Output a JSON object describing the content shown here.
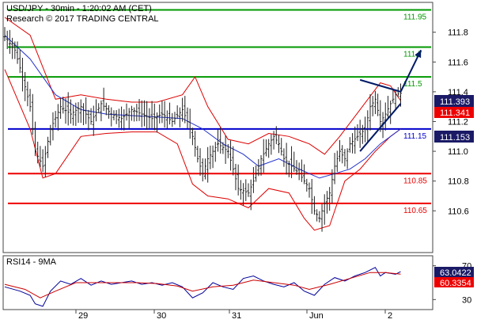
{
  "header": {
    "title": "USD/JPY - 30min - 1:20:02 AM (CET)",
    "credit": "Research © 2017 TRADING CENTRAL"
  },
  "colors": {
    "price_bars": "#222222",
    "bollinger": "#dd0000",
    "moving_average": "#2233cc",
    "support": "#ee0000",
    "pivot": "#0000cc",
    "resistance": "#009900",
    "target_arrow": "#001a66",
    "rsi": "#000099",
    "rsi_ma": "#cc0000"
  },
  "chart_data": [
    {
      "type": "candlestick",
      "title": "USD/JPY - 30min - 1:20:02 AM (CET)",
      "y_range": [
        110.33,
        111.99
      ],
      "y_ticks": [
        "111.8",
        "111.6",
        "111.4",
        "111.2",
        "111.0",
        "110.8",
        "110.6"
      ],
      "y_tick_values": [
        111.8,
        111.6,
        111.4,
        111.2,
        111.0,
        110.8,
        110.6
      ],
      "x_labels": [
        "29",
        "30",
        "31",
        "Jun",
        "2"
      ],
      "current_price": "111.393",
      "current_price_value": 111.393,
      "upper_band_value": "111.341",
      "upper_band": 111.341,
      "lower_value": "111.153",
      "lower_level": 111.153,
      "levels": [
        {
          "value": 111.95,
          "label": "111.95",
          "kind": "resistance"
        },
        {
          "value": 111.7,
          "label": "111.7",
          "kind": "resistance"
        },
        {
          "value": 111.5,
          "label": "111.5",
          "kind": "resistance"
        },
        {
          "value": 111.15,
          "label": "111.15",
          "kind": "pivot"
        },
        {
          "value": 110.85,
          "label": "110.85",
          "kind": "support"
        },
        {
          "value": 110.65,
          "label": "110.65",
          "kind": "support"
        }
      ],
      "close_path": [
        [
          0,
          111.77
        ],
        [
          4,
          111.68
        ],
        [
          7,
          111.5
        ],
        [
          10,
          111.3
        ],
        [
          12,
          111.0
        ],
        [
          15,
          110.9
        ],
        [
          18,
          111.15
        ],
        [
          22,
          111.3
        ],
        [
          26,
          111.25
        ],
        [
          30,
          111.3
        ],
        [
          34,
          111.2
        ],
        [
          38,
          111.32
        ],
        [
          42,
          111.25
        ],
        [
          46,
          111.22
        ],
        [
          50,
          111.28
        ],
        [
          54,
          111.25
        ],
        [
          58,
          111.22
        ],
        [
          62,
          111.25
        ],
        [
          66,
          111.2
        ],
        [
          70,
          111.28
        ],
        [
          72,
          111.2
        ],
        [
          74,
          111.1
        ],
        [
          76,
          110.95
        ],
        [
          78,
          110.85
        ],
        [
          80,
          110.95
        ],
        [
          84,
          111.05
        ],
        [
          88,
          111.0
        ],
        [
          90,
          110.88
        ],
        [
          92,
          110.75
        ],
        [
          96,
          110.72
        ],
        [
          98,
          110.8
        ],
        [
          101,
          110.95
        ],
        [
          104,
          111.05
        ],
        [
          106,
          111.1
        ],
        [
          108,
          111.05
        ],
        [
          110,
          110.95
        ],
        [
          113,
          110.9
        ],
        [
          116,
          110.85
        ],
        [
          118,
          110.8
        ],
        [
          120,
          110.75
        ],
        [
          122,
          110.6
        ],
        [
          124,
          110.55
        ],
        [
          126,
          110.65
        ],
        [
          128,
          110.72
        ],
        [
          130,
          110.9
        ],
        [
          132,
          111.0
        ],
        [
          134,
          110.95
        ],
        [
          136,
          111.05
        ],
        [
          139,
          111.1
        ],
        [
          142,
          111.15
        ],
        [
          144,
          111.3
        ],
        [
          146,
          111.35
        ],
        [
          148,
          111.2
        ],
        [
          150,
          111.25
        ],
        [
          152,
          111.32
        ],
        [
          154,
          111.38
        ],
        [
          156,
          111.39
        ]
      ],
      "upper_band_path": [
        [
          0,
          111.9
        ],
        [
          10,
          111.78
        ],
        [
          20,
          111.35
        ],
        [
          30,
          111.38
        ],
        [
          40,
          111.35
        ],
        [
          50,
          111.33
        ],
        [
          60,
          111.33
        ],
        [
          70,
          111.38
        ],
        [
          75,
          111.5
        ],
        [
          80,
          111.3
        ],
        [
          88,
          111.08
        ],
        [
          96,
          111.05
        ],
        [
          104,
          111.12
        ],
        [
          112,
          111.1
        ],
        [
          120,
          111.05
        ],
        [
          126,
          110.98
        ],
        [
          132,
          111.1
        ],
        [
          140,
          111.28
        ],
        [
          148,
          111.46
        ],
        [
          152,
          111.44
        ],
        [
          156,
          111.34
        ]
      ],
      "lower_band_path": [
        [
          0,
          111.55
        ],
        [
          10,
          111.15
        ],
        [
          15,
          110.82
        ],
        [
          20,
          110.85
        ],
        [
          30,
          111.1
        ],
        [
          40,
          111.12
        ],
        [
          50,
          111.13
        ],
        [
          60,
          111.13
        ],
        [
          68,
          111.05
        ],
        [
          74,
          110.78
        ],
        [
          80,
          110.7
        ],
        [
          88,
          110.68
        ],
        [
          96,
          110.62
        ],
        [
          104,
          110.75
        ],
        [
          112,
          110.72
        ],
        [
          118,
          110.55
        ],
        [
          122,
          110.47
        ],
        [
          128,
          110.5
        ],
        [
          134,
          110.8
        ],
        [
          140,
          110.88
        ],
        [
          146,
          111.0
        ],
        [
          152,
          111.1
        ],
        [
          156,
          111.15
        ]
      ],
      "ma_path": [
        [
          0,
          111.78
        ],
        [
          10,
          111.62
        ],
        [
          20,
          111.38
        ],
        [
          30,
          111.28
        ],
        [
          40,
          111.25
        ],
        [
          50,
          111.24
        ],
        [
          60,
          111.23
        ],
        [
          70,
          111.22
        ],
        [
          78,
          111.15
        ],
        [
          86,
          111.05
        ],
        [
          94,
          110.98
        ],
        [
          100,
          110.9
        ],
        [
          108,
          110.95
        ],
        [
          116,
          110.88
        ],
        [
          124,
          110.82
        ],
        [
          130,
          110.85
        ],
        [
          136,
          110.88
        ],
        [
          142,
          110.95
        ],
        [
          148,
          111.05
        ],
        [
          152,
          111.1
        ],
        [
          156,
          111.15
        ]
      ],
      "triangle_upper": [
        [
          140,
          111.48
        ],
        [
          156,
          111.4
        ]
      ],
      "triangle_lower": [
        [
          140,
          111.0
        ],
        [
          156,
          111.32
        ]
      ],
      "target_arrow": [
        [
          156,
          111.4
        ],
        [
          164,
          111.68
        ]
      ]
    },
    {
      "type": "line",
      "title": "RSI14 - 9MA",
      "y_range": [
        20,
        80
      ],
      "y_ticks": [
        "70",
        "30"
      ],
      "y_tick_values": [
        70,
        30
      ],
      "rsi_value": "63.0422",
      "rsi": 63.0422,
      "ma_value": "60.3354",
      "ma": 60.3354,
      "rsi_path": [
        [
          0,
          45
        ],
        [
          6,
          40
        ],
        [
          10,
          35
        ],
        [
          12,
          25
        ],
        [
          15,
          22
        ],
        [
          18,
          40
        ],
        [
          22,
          52
        ],
        [
          26,
          48
        ],
        [
          30,
          55
        ],
        [
          34,
          47
        ],
        [
          38,
          52
        ],
        [
          42,
          48
        ],
        [
          46,
          50
        ],
        [
          50,
          52
        ],
        [
          54,
          48
        ],
        [
          58,
          50
        ],
        [
          62,
          47
        ],
        [
          66,
          50
        ],
        [
          70,
          45
        ],
        [
          74,
          32
        ],
        [
          78,
          38
        ],
        [
          82,
          50
        ],
        [
          86,
          45
        ],
        [
          90,
          42
        ],
        [
          94,
          55
        ],
        [
          98,
          58
        ],
        [
          102,
          52
        ],
        [
          106,
          48
        ],
        [
          110,
          45
        ],
        [
          114,
          50
        ],
        [
          118,
          40
        ],
        [
          122,
          35
        ],
        [
          126,
          48
        ],
        [
          130,
          56
        ],
        [
          134,
          52
        ],
        [
          138,
          58
        ],
        [
          142,
          62
        ],
        [
          146,
          68
        ],
        [
          148,
          58
        ],
        [
          150,
          62
        ],
        [
          154,
          60
        ],
        [
          156,
          63
        ]
      ],
      "ma_path": [
        [
          0,
          48
        ],
        [
          8,
          42
        ],
        [
          14,
          32
        ],
        [
          20,
          40
        ],
        [
          28,
          50
        ],
        [
          36,
          50
        ],
        [
          44,
          50
        ],
        [
          52,
          50
        ],
        [
          60,
          49
        ],
        [
          68,
          46
        ],
        [
          74,
          40
        ],
        [
          82,
          45
        ],
        [
          90,
          47
        ],
        [
          98,
          53
        ],
        [
          106,
          50
        ],
        [
          114,
          47
        ],
        [
          120,
          42
        ],
        [
          128,
          48
        ],
        [
          136,
          55
        ],
        [
          144,
          62
        ],
        [
          150,
          62
        ],
        [
          156,
          60
        ]
      ]
    }
  ]
}
